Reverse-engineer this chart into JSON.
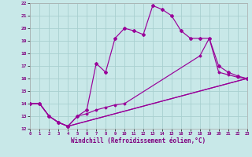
{
  "xlabel": "Windchill (Refroidissement éolien,°C)",
  "bg_color": "#c8e8e8",
  "grid_color": "#a8d0d0",
  "line_color": "#990099",
  "xlim": [
    0,
    23
  ],
  "ylim": [
    12,
    22
  ],
  "xticks": [
    0,
    1,
    2,
    3,
    4,
    5,
    6,
    7,
    8,
    9,
    10,
    11,
    12,
    13,
    14,
    15,
    16,
    17,
    18,
    19,
    20,
    21,
    22,
    23
  ],
  "yticks": [
    12,
    13,
    14,
    15,
    16,
    17,
    18,
    19,
    20,
    21,
    22
  ],
  "line1_x": [
    0,
    1,
    2,
    3,
    4,
    5,
    6,
    7,
    8,
    9,
    10,
    11,
    12,
    13,
    14,
    15,
    16,
    17,
    18,
    19,
    20,
    21,
    22,
    23
  ],
  "line1_y": [
    14,
    14,
    13,
    12.5,
    12.2,
    13.0,
    13.5,
    17.2,
    16.5,
    19.2,
    20.0,
    19.8,
    19.5,
    21.8,
    21.5,
    21.0,
    19.8,
    19.2,
    19.2,
    19.2,
    17.0,
    16.5,
    16.2,
    16.0
  ],
  "line2_x": [
    0,
    1,
    2,
    3,
    4,
    23
  ],
  "line2_y": [
    14,
    14,
    13,
    12.5,
    12.2,
    16.0
  ],
  "line3_x": [
    0,
    1,
    2,
    3,
    4,
    5,
    6,
    7,
    8,
    9,
    10,
    18,
    19,
    20,
    21,
    22,
    23
  ],
  "line3_y": [
    14,
    14,
    13,
    12.5,
    12.2,
    13.0,
    13.2,
    13.5,
    13.7,
    13.9,
    14.0,
    17.8,
    19.2,
    16.5,
    16.3,
    16.1,
    16.0
  ],
  "line4_x": [
    0,
    1,
    2,
    3,
    4,
    23
  ],
  "line4_y": [
    14,
    14,
    13,
    12.5,
    12.2,
    16.0
  ]
}
